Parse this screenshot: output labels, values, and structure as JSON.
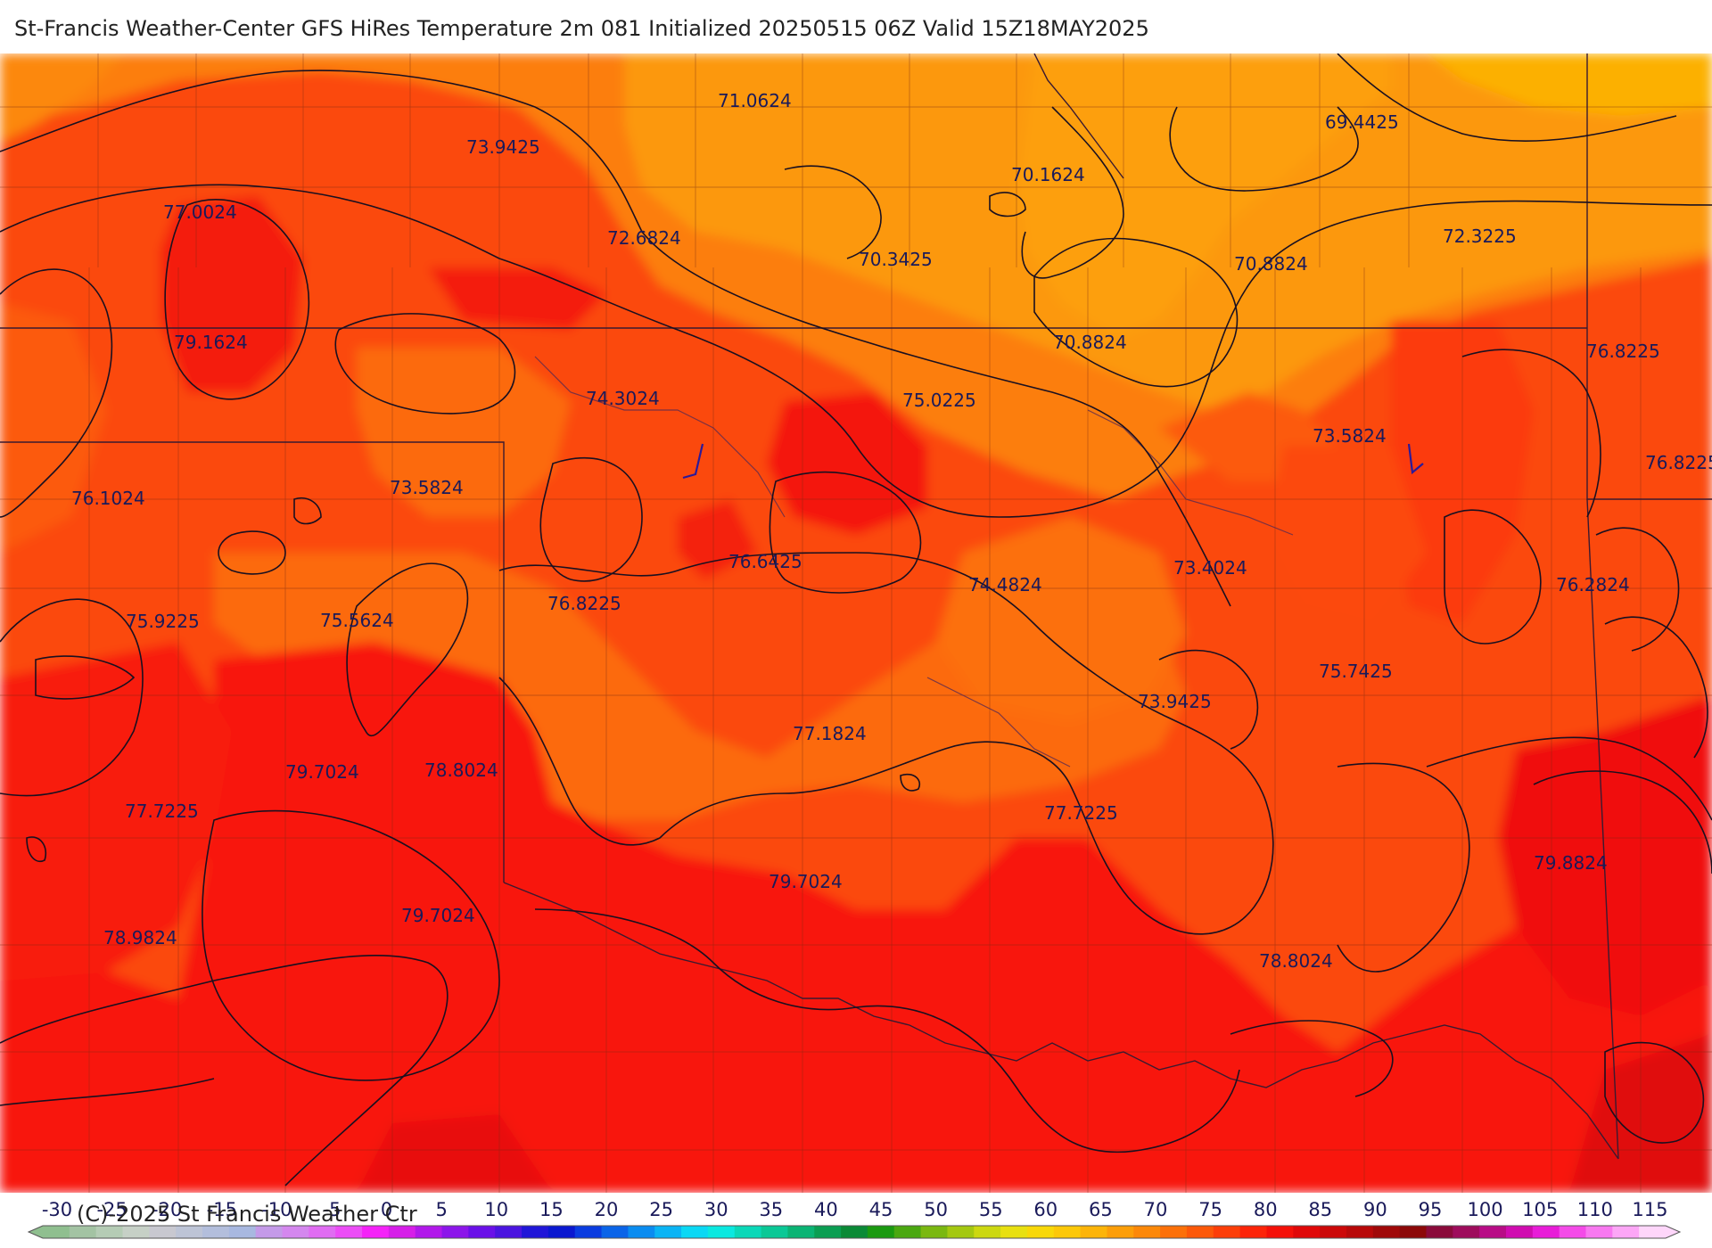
{
  "title": "St-Francis Weather-Center GFS HiRes Temperature 2m  081 Initialized 20250515 06Z Valid 15Z18MAY2025",
  "copyright": "(C)-2025 St Francis Weather Ctr",
  "map_labels": [
    {
      "text": "71.0624"
    },
    {
      "text": "69.4425"
    },
    {
      "text": "73.9425"
    },
    {
      "text": "70.1624"
    },
    {
      "text": "77.0024"
    },
    {
      "text": "72.6824"
    },
    {
      "text": "70.3425"
    },
    {
      "text": "70.8824"
    },
    {
      "text": "72.3225"
    },
    {
      "text": "79.1624"
    },
    {
      "text": "70.8824"
    },
    {
      "text": "76.8225"
    },
    {
      "text": "74.3024"
    },
    {
      "text": "75.0225"
    },
    {
      "text": "73.5824"
    },
    {
      "text": "76.8225"
    },
    {
      "text": "76.1024"
    },
    {
      "text": "73.5824"
    },
    {
      "text": "76.6425"
    },
    {
      "text": "73.4024"
    },
    {
      "text": "74.4824"
    },
    {
      "text": "76.2824"
    },
    {
      "text": "76.8225"
    },
    {
      "text": "75.9225"
    },
    {
      "text": "75.5624"
    },
    {
      "text": "75.7425"
    },
    {
      "text": "73.9425"
    },
    {
      "text": "77.1824"
    },
    {
      "text": "79.7024"
    },
    {
      "text": "78.8024"
    },
    {
      "text": "77.7225"
    },
    {
      "text": "77.7225"
    },
    {
      "text": "79.8824"
    },
    {
      "text": "79.7024"
    },
    {
      "text": "79.7024"
    },
    {
      "text": "78.9824"
    },
    {
      "text": "78.8024"
    }
  ],
  "legend": {
    "ticks": [
      "-30",
      "-25",
      "-20",
      "-15",
      "-10",
      "-5",
      "0",
      "5",
      "10",
      "15",
      "20",
      "25",
      "30",
      "35",
      "40",
      "45",
      "50",
      "55",
      "60",
      "65",
      "70",
      "75",
      "80",
      "85",
      "90",
      "95",
      "100",
      "105",
      "110",
      "115"
    ],
    "colors": [
      "#8fbf8f",
      "#a3c3a3",
      "#b5ccb5",
      "#c6d0c6",
      "#c8c8d0",
      "#bdc4d6",
      "#b3bedc",
      "#a8b8e0",
      "#c49ae8",
      "#d487ee",
      "#e06cf2",
      "#ec4cf6",
      "#f422f8",
      "#d61ee8",
      "#b118ea",
      "#8c16ea",
      "#6a10e8",
      "#4a14e0",
      "#2016d8",
      "#0a18d0",
      "#0a3ce0",
      "#0a64e8",
      "#0a8cf0",
      "#0ab4f4",
      "#0ad8f4",
      "#0ae8e0",
      "#0ad8b8",
      "#0ac896",
      "#0ab474",
      "#0a9e52",
      "#0a8a36",
      "#1a9a10",
      "#4aa810",
      "#7ab810",
      "#a4c810",
      "#ccd810",
      "#e8e010",
      "#f8d808",
      "#fcc808",
      "#fcb408",
      "#fc9e08",
      "#fc8808",
      "#fc7008",
      "#fc5808",
      "#fc3e08",
      "#fc2408",
      "#f41008",
      "#e00808",
      "#cc0808",
      "#b80808",
      "#a00808",
      "#8c0808",
      "#8a0a3a",
      "#9e0c5c",
      "#b80c86",
      "#d00cb0",
      "#e81cd8",
      "#f44ae8",
      "#f878f0",
      "#fca6f6",
      "#fed6fa"
    ]
  }
}
